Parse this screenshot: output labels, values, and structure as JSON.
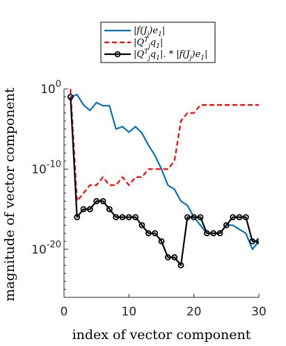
{
  "chart_data": {
    "type": "line",
    "xlabel": "index of vector component",
    "ylabel": "magnitude of vector component",
    "xlim": [
      0,
      30
    ],
    "ylog": true,
    "ylim": [
      1e-26,
      1.0
    ],
    "xticks": [
      {
        "value": 0,
        "label": "0"
      },
      {
        "value": 10,
        "label": "10"
      },
      {
        "value": 20,
        "label": "20"
      },
      {
        "value": 30,
        "label": "30"
      }
    ],
    "yticks": [
      {
        "value": 1.0,
        "base": "10",
        "exp": "0"
      },
      {
        "value": 1e-10,
        "base": "10",
        "exp": "-10"
      },
      {
        "value": 1e-20,
        "base": "10",
        "exp": "-20"
      }
    ],
    "grid": false,
    "legend_position": "top-center, outside",
    "series": [
      {
        "name": "|f(J_j)e_1|",
        "color": "#0072BD",
        "style": "solid",
        "marker": "none",
        "x": [
          1,
          2,
          3,
          4,
          5,
          6,
          7,
          8,
          9,
          10,
          11,
          12,
          13,
          14,
          15,
          16,
          17,
          18,
          19,
          20,
          21,
          22,
          23,
          24,
          25,
          26,
          27,
          28,
          29,
          30
        ],
        "y": [
          0.1,
          0.2,
          0.01,
          0.002,
          0.02,
          0.008,
          0.008,
          1e-05,
          2e-05,
          4e-06,
          2e-05,
          3e-06,
          1e-07,
          5e-09,
          1e-10,
          1e-12,
          3e-13,
          1e-14,
          3e-15,
          1e-16,
          1e-17,
          1e-18,
          1e-18,
          1e-18,
          1e-17,
          1e-17,
          3e-18,
          1e-18,
          1e-20,
          1e-19
        ]
      },
      {
        "name": "|Q_j^T q_1|",
        "color": "#FF0000",
        "style": "dashed",
        "marker": "none",
        "x": [
          1,
          2,
          3,
          4,
          5,
          6,
          7,
          8,
          9,
          10,
          11,
          12,
          13,
          14,
          15,
          16,
          17,
          18,
          19,
          20,
          21,
          22,
          23,
          24,
          25,
          26,
          27,
          28,
          29,
          30
        ],
        "y": [
          1.0,
          1e-14,
          1e-13,
          1e-12,
          1e-12,
          1e-11,
          1e-12,
          1e-12,
          1e-11,
          1e-12,
          1e-11,
          1e-11,
          1e-10,
          1e-10,
          1e-10,
          1e-10,
          1e-09,
          0.0001,
          0.001,
          0.001,
          0.01,
          0.01,
          0.01,
          0.01,
          0.01,
          0.01,
          0.01,
          0.01,
          0.01,
          0.01
        ]
      },
      {
        "name": "|Q_j^T q_1|.*|f(J_j)e_1|",
        "color": "#000000",
        "style": "solid",
        "marker": "circle",
        "x": [
          1,
          2,
          3,
          4,
          5,
          6,
          7,
          8,
          9,
          10,
          11,
          12,
          13,
          14,
          15,
          16,
          17,
          18,
          19,
          20,
          21,
          22,
          23,
          24,
          25,
          26,
          27,
          28,
          29,
          30
        ],
        "y": [
          0.1,
          1e-16,
          1e-15,
          1e-15,
          1e-14,
          1e-14,
          1e-15,
          1e-16,
          1e-16,
          1e-16,
          1e-16,
          1e-17,
          1e-18,
          1e-18,
          1e-19,
          1e-21,
          1e-21,
          1e-22,
          1e-16,
          1e-16,
          1e-16,
          1e-18,
          1e-18,
          1e-18,
          1e-17,
          1e-16,
          1e-16,
          1e-16,
          1e-19,
          1e-19
        ]
      }
    ]
  }
}
